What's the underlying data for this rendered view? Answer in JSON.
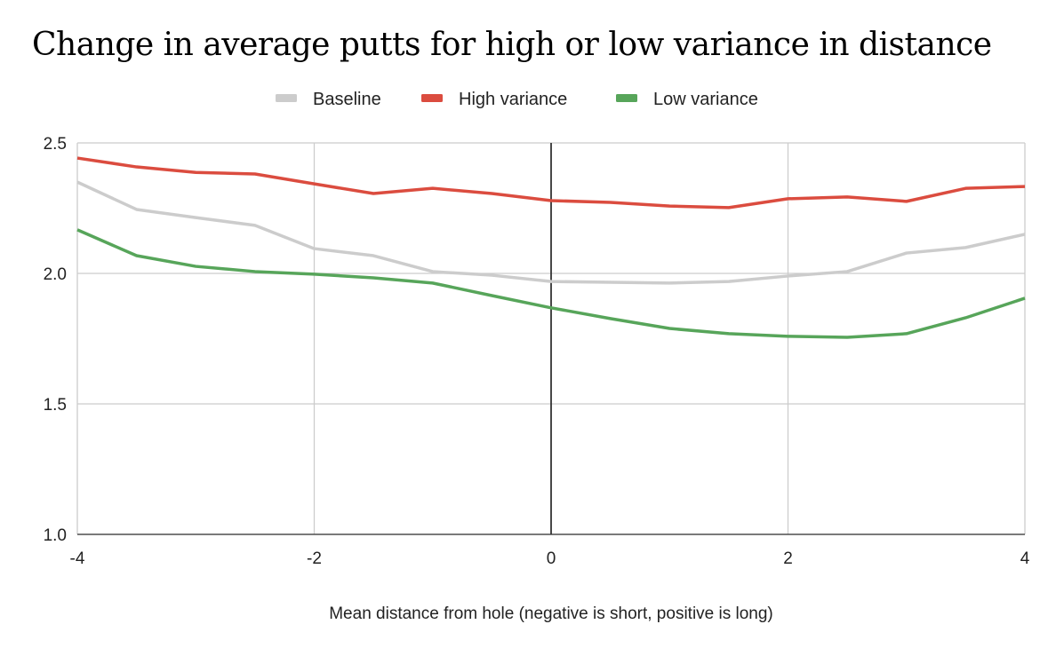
{
  "chart_data": {
    "type": "line",
    "title": "Change in average putts for high or low variance in distance",
    "xlabel": "Mean distance from hole (negative is short, positive is long)",
    "ylabel": "",
    "xlim": [
      -4,
      4
    ],
    "ylim": [
      1.0,
      2.5
    ],
    "xticks": [
      "-4",
      "-2",
      "0",
      "2",
      "4"
    ],
    "yticks": [
      "1.0",
      "1.5",
      "2.0",
      "2.5"
    ],
    "grid": true,
    "legend": "top",
    "x": [
      -4,
      -3.5,
      -3,
      -2.5,
      -2,
      -1.5,
      -1,
      -0.5,
      0,
      0.5,
      1,
      1.5,
      2,
      2.5,
      3,
      3.5,
      4
    ],
    "series": [
      {
        "name": "Baseline",
        "color": "#cccccc",
        "values": [
          2.35,
          2.245,
          2.214,
          2.184,
          2.095,
          2.068,
          2.007,
          1.993,
          1.969,
          1.966,
          1.963,
          1.969,
          1.99,
          2.007,
          2.078,
          2.099,
          2.15
        ]
      },
      {
        "name": "High variance",
        "color": "#db4c3f",
        "values": [
          2.442,
          2.408,
          2.387,
          2.381,
          2.343,
          2.306,
          2.326,
          2.306,
          2.279,
          2.272,
          2.258,
          2.252,
          2.286,
          2.293,
          2.276,
          2.326,
          2.333
        ]
      },
      {
        "name": "Low variance",
        "color": "#57a55a",
        "values": [
          2.167,
          2.068,
          2.027,
          2.007,
          1.997,
          1.983,
          1.963,
          1.915,
          1.868,
          1.827,
          1.789,
          1.769,
          1.759,
          1.755,
          1.769,
          1.83,
          1.905
        ]
      }
    ]
  }
}
